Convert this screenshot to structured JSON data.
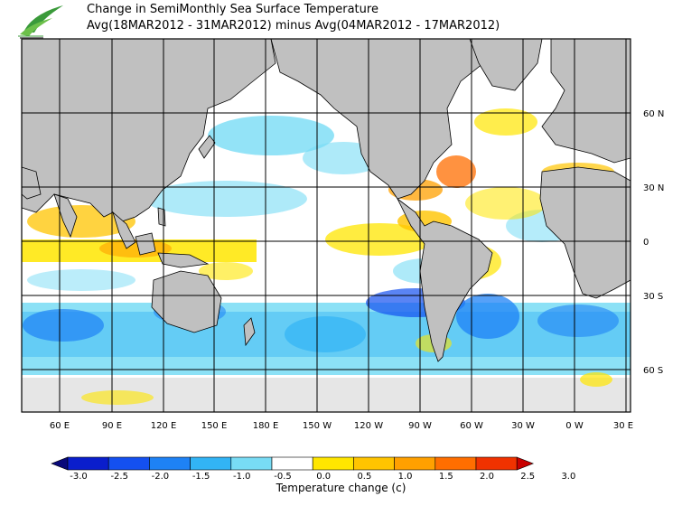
{
  "header": {
    "title_line1": "Change in SemiMonthly Sea Surface Temperature",
    "title_line2": "Avg(18MAR2012 - 31MAR2012) minus Avg(04MAR2012 - 17MAR2012)"
  },
  "map": {
    "lon_labels": [
      "60 E",
      "90 E",
      "120 E",
      "150 E",
      "180 E",
      "150 W",
      "120 W",
      "90 W",
      "60 W",
      "30 W",
      "0 W",
      "30 E"
    ],
    "lat_labels": [
      "60 N",
      "30 N",
      "0",
      "30 S",
      "60 S"
    ],
    "land_color": "#c0c0c0",
    "ocean_neutral_color": "#ffffff",
    "ice_color": "#e6e6e6"
  },
  "colorbar": {
    "title": "Temperature change  (c)",
    "labels": [
      "-3.0",
      "-2.5",
      "-2.0",
      "-1.5",
      "-1.0",
      "-0.5",
      "0.0",
      "0.5",
      "1.0",
      "1.5",
      "2.0",
      "2.5",
      "3.0"
    ],
    "colors": [
      "#08087a",
      "#0a1ecc",
      "#1450f0",
      "#1e82f5",
      "#32b4f5",
      "#78dcf5",
      "#ffffff",
      "#ffe600",
      "#ffc400",
      "#ffa000",
      "#ff6e00",
      "#f03200",
      "#c80000"
    ]
  }
}
